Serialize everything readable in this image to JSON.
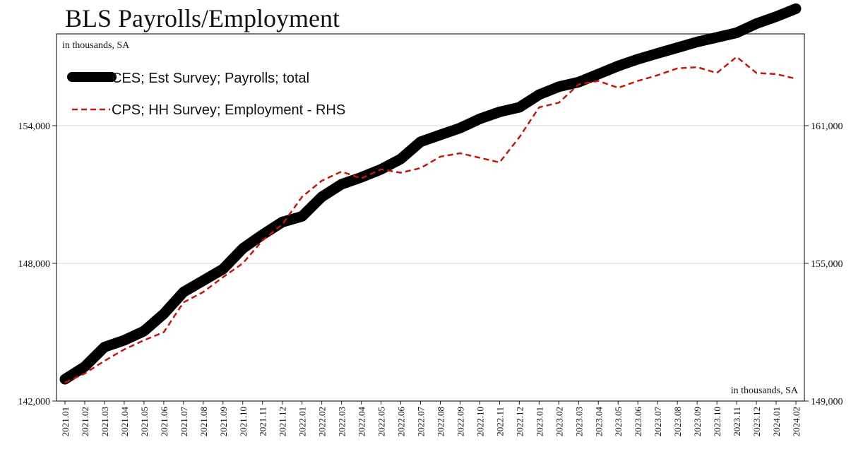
{
  "chart_data": {
    "type": "line",
    "title": "BLS Payrolls/Employment",
    "left_unit_label": "in thousands, SA",
    "right_unit_label": "in thousands, SA",
    "x": [
      "2021.01",
      "2021.02",
      "2021.03",
      "2021.04",
      "2021.05",
      "2021.06",
      "2021.07",
      "2021.08",
      "2021.09",
      "2021.10",
      "2021.11",
      "2021.12",
      "2022.01",
      "2022.02",
      "2022.03",
      "2022.04",
      "2022.05",
      "2022.06",
      "2022.07",
      "2022.08",
      "2022.09",
      "2022.10",
      "2022.11",
      "2022.12",
      "2023.01",
      "2023.02",
      "2023.03",
      "2023.04",
      "2023.05",
      "2023.06",
      "2023.07",
      "2023.08",
      "2023.09",
      "2023.10",
      "2023.11",
      "2023.12",
      "2024.01",
      "2024.02"
    ],
    "y_left": {
      "ylim": [
        142000,
        158000
      ],
      "ticks": [
        142000,
        148000,
        154000
      ],
      "tick_labels": [
        "142,000",
        "148,000",
        "154,000"
      ]
    },
    "y_right": {
      "ylim": [
        149000,
        165000
      ],
      "ticks": [
        149000,
        155000,
        161000
      ],
      "tick_labels": [
        "149,000",
        "155,000",
        "161,000"
      ]
    },
    "grid": true,
    "legend_position": "top-left",
    "series": [
      {
        "name": "CES; Est Survey; Payrolls; total",
        "axis": "left",
        "color": "#000000",
        "style": "solid-thick",
        "values": [
          142950,
          143500,
          144350,
          144650,
          145050,
          145800,
          146750,
          147250,
          147750,
          148650,
          149250,
          149800,
          150050,
          150900,
          151450,
          151750,
          152100,
          152550,
          153300,
          153600,
          153900,
          154300,
          154600,
          154800,
          155350,
          155700,
          155900,
          156250,
          156600,
          156900,
          157150,
          157400,
          157650,
          157850,
          158050,
          158450,
          158750,
          159100
        ]
      },
      {
        "name": "CPS; HH Survey; Employment - RHS",
        "axis": "right",
        "color": "#c0180c",
        "style": "dashed",
        "values": [
          149800,
          150200,
          150750,
          151250,
          151650,
          152000,
          153300,
          153750,
          154400,
          155000,
          156000,
          156700,
          157900,
          158600,
          159000,
          158700,
          159100,
          158950,
          159150,
          159650,
          159800,
          159600,
          159400,
          160500,
          161800,
          162000,
          162800,
          162950,
          162650,
          162950,
          163200,
          163500,
          163550,
          163300,
          164000,
          163300,
          163250,
          163050
        ]
      }
    ]
  }
}
